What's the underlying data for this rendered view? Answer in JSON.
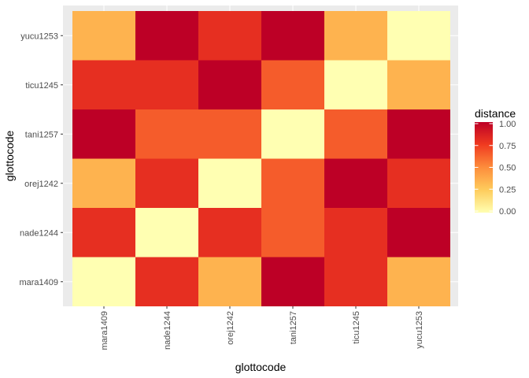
{
  "chart_data": {
    "type": "heatmap",
    "xlabel": "glottocode",
    "ylabel": "glottocode",
    "x_categories": [
      "mara1409",
      "nade1244",
      "orej1242",
      "tani1257",
      "ticu1245",
      "yucu1253"
    ],
    "y_categories": [
      "mara1409",
      "nade1244",
      "orej1242",
      "tani1257",
      "ticu1245",
      "yucu1253"
    ],
    "values": [
      [
        0.0,
        0.8,
        0.35,
        1.0,
        0.8,
        0.35
      ],
      [
        0.8,
        0.0,
        0.8,
        0.65,
        0.8,
        1.0
      ],
      [
        0.35,
        0.8,
        0.0,
        0.65,
        1.0,
        0.8
      ],
      [
        1.0,
        0.65,
        0.65,
        0.0,
        0.65,
        1.0
      ],
      [
        0.8,
        0.8,
        1.0,
        0.65,
        0.0,
        0.35
      ],
      [
        0.35,
        1.0,
        0.8,
        1.0,
        0.35,
        0.0
      ]
    ],
    "legend": {
      "title": "distance",
      "ticks": [
        "0.00",
        "0.25",
        "0.50",
        "0.75",
        "1.00"
      ],
      "tick_values": [
        0,
        0.25,
        0.5,
        0.75,
        1
      ],
      "colors": [
        "#FFFFB2",
        "#FECC5C",
        "#FD8D3C",
        "#F03B20",
        "#BD0026"
      ],
      "placement": "right"
    },
    "panel_background": "#EBEBEB",
    "grid": true
  }
}
